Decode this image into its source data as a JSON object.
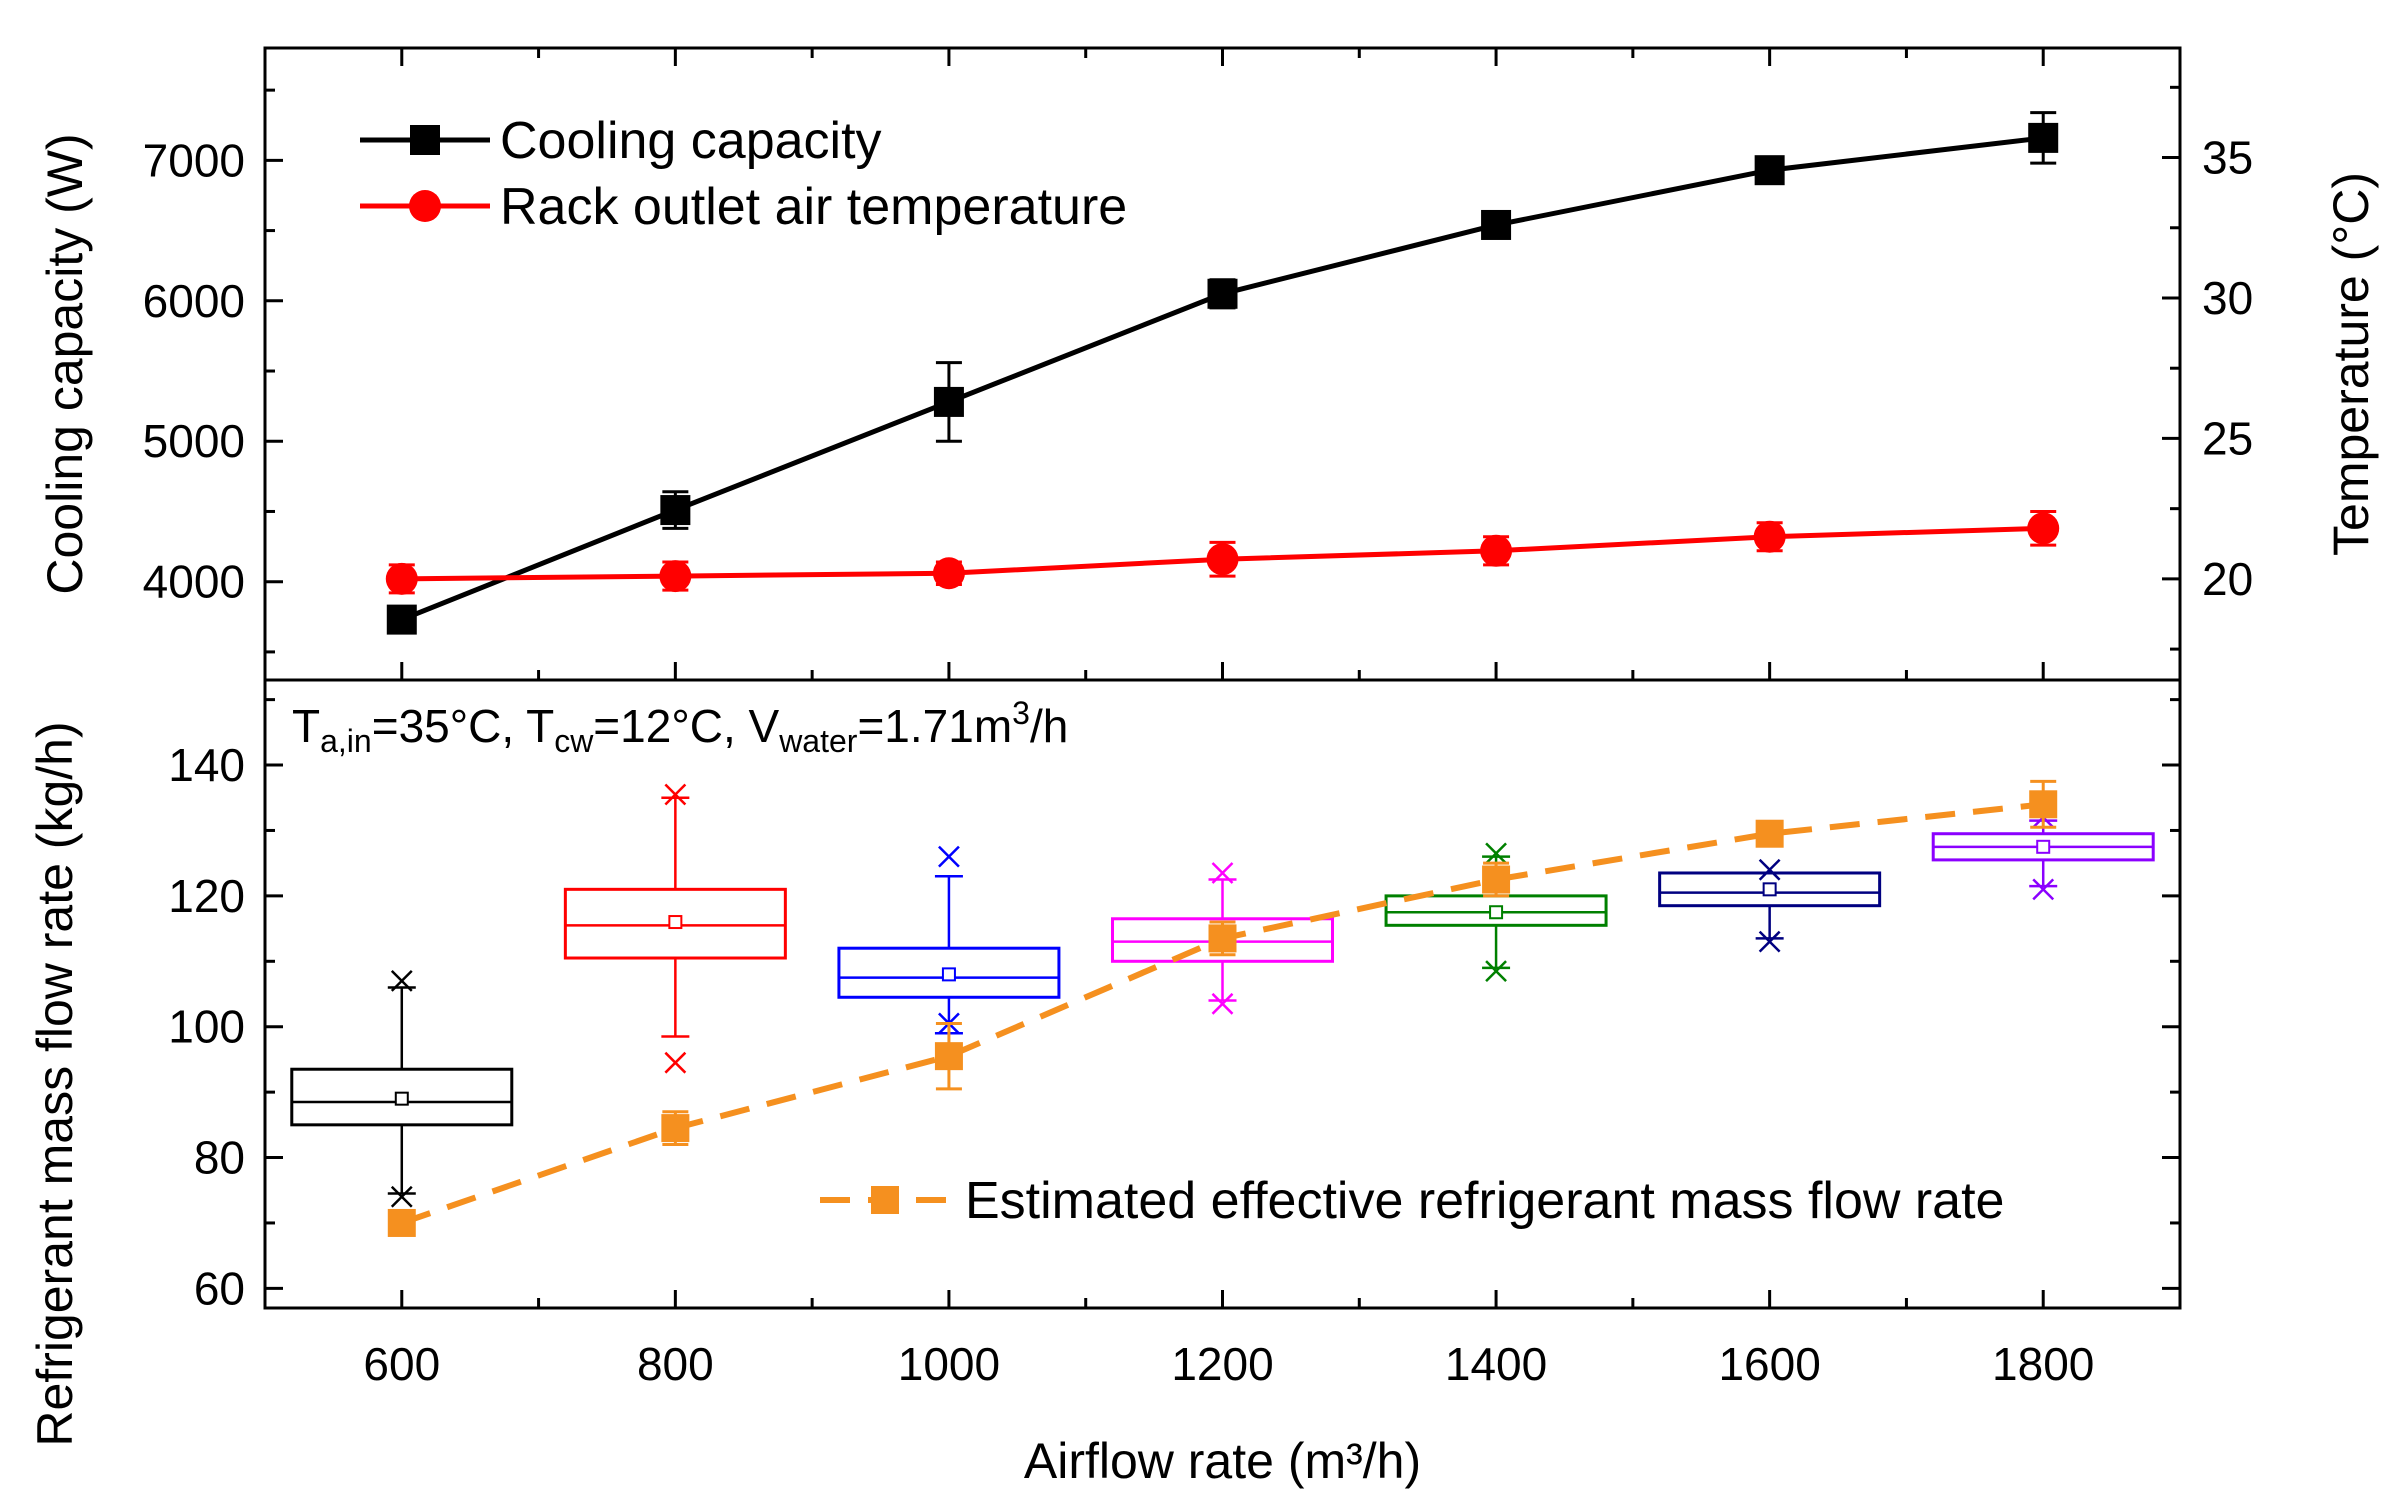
{
  "chart_data": [
    {
      "type": "line",
      "panel": "top",
      "x": [
        600,
        800,
        1000,
        1200,
        1400,
        1600,
        1800
      ],
      "xlim": [
        500,
        1900
      ],
      "grid": false,
      "legend_position": "top-left",
      "left_axis": {
        "label": "Cooling capacity (W)",
        "ylim": [
          3300,
          7800
        ],
        "ticks": [
          4000,
          5000,
          6000,
          7000
        ]
      },
      "right_axis": {
        "label": "Temperature (°C)",
        "ylim": [
          16.4,
          38.9
        ],
        "ticks": [
          20,
          25,
          30,
          35
        ]
      },
      "series": [
        {
          "name": "Cooling capacity",
          "axis": "left",
          "color": "#000000",
          "marker": "square",
          "values": [
            3730,
            4510,
            5280,
            6050,
            6540,
            6930,
            7160
          ],
          "error": [
            50,
            130,
            280,
            100,
            60,
            50,
            180
          ]
        },
        {
          "name": "Rack outlet air temperature",
          "axis": "right",
          "color": "#ff0000",
          "marker": "circle",
          "values": [
            20.0,
            20.1,
            20.2,
            20.7,
            21.0,
            21.5,
            21.8
          ],
          "error": [
            0.5,
            0.5,
            0.4,
            0.6,
            0.5,
            0.5,
            0.6
          ]
        }
      ]
    },
    {
      "type": "box",
      "panel": "bottom",
      "ylabel": "Refrigerant mass flow rate (kg/h)",
      "xlabel": "Airflow rate (m³/h)",
      "xlim": [
        500,
        1900
      ],
      "ylim": [
        57,
        153
      ],
      "yticks": [
        60,
        80,
        100,
        120,
        140
      ],
      "xticks": [
        600,
        800,
        1000,
        1200,
        1400,
        1600,
        1800
      ],
      "grid": false,
      "annotation": {
        "parts": [
          {
            "t": "T",
            "s": ""
          },
          {
            "t": "a,in",
            "s": "sub"
          },
          {
            "t": "=35°C, T",
            "s": ""
          },
          {
            "t": "cw",
            "s": "sub"
          },
          {
            "t": "=12°C, V",
            "s": ""
          },
          {
            "t": "water",
            "s": "sub"
          },
          {
            "t": "=1.71m",
            "s": ""
          },
          {
            "t": "3",
            "s": "sup"
          },
          {
            "t": "/h",
            "s": ""
          }
        ]
      },
      "boxes": [
        {
          "x": 600,
          "color": "#000000",
          "q1": 85.0,
          "median": 88.5,
          "q3": 93.5,
          "mean": 89.0,
          "whisker_low": 74.5,
          "whisker_high": 106.0,
          "min": 74.0,
          "max": 107.0
        },
        {
          "x": 800,
          "color": "#ff0000",
          "q1": 110.5,
          "median": 115.5,
          "q3": 121.0,
          "mean": 116.0,
          "whisker_low": 98.5,
          "whisker_high": 135.0,
          "min": 94.5,
          "max": 135.5
        },
        {
          "x": 1000,
          "color": "#0000ff",
          "q1": 104.5,
          "median": 107.5,
          "q3": 112.0,
          "mean": 108.0,
          "whisker_low": 99.0,
          "whisker_high": 123.0,
          "min": 100.5,
          "max": 126.0
        },
        {
          "x": 1200,
          "color": "#ff00ff",
          "q1": 110.0,
          "median": 113.0,
          "q3": 116.5,
          "mean": 113.5,
          "whisker_low": 104.0,
          "whisker_high": 122.5,
          "min": 103.5,
          "max": 123.5
        },
        {
          "x": 1400,
          "color": "#008000",
          "q1": 115.5,
          "median": 117.5,
          "q3": 120.0,
          "mean": 117.5,
          "whisker_low": 109.0,
          "whisker_high": 126.0,
          "min": 108.5,
          "max": 126.5
        },
        {
          "x": 1600,
          "color": "#000080",
          "q1": 118.5,
          "median": 120.5,
          "q3": 123.5,
          "mean": 121.0,
          "whisker_low": 113.5,
          "whisker_high": 123.5,
          "min": 113.0,
          "max": 124.0
        },
        {
          "x": 1800,
          "color": "#8b00ff",
          "q1": 125.5,
          "median": 127.5,
          "q3": 129.5,
          "mean": 127.5,
          "whisker_low": 121.5,
          "whisker_high": 131.5,
          "min": 121.0,
          "max": 132.0
        }
      ],
      "series": [
        {
          "name": "Estimated effective refrigerant mass flow rate",
          "color": "#f5901f",
          "line_style": "dashed",
          "marker": "square",
          "x": [
            600,
            800,
            1000,
            1200,
            1400,
            1600,
            1800
          ],
          "values": [
            70.0,
            84.5,
            95.5,
            113.5,
            122.5,
            129.5,
            134.0
          ],
          "error": [
            0,
            2.5,
            5.0,
            2.5,
            2.5,
            1.0,
            3.5
          ]
        }
      ],
      "legend_position": "bottom-right"
    }
  ]
}
